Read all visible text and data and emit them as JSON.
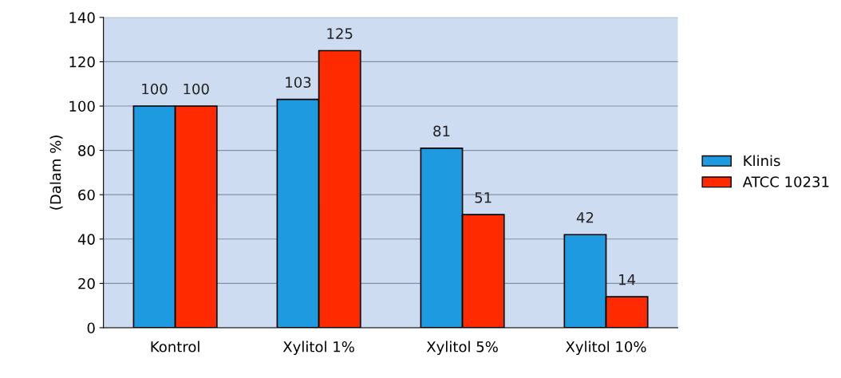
{
  "chart_data": {
    "type": "bar",
    "ylabel": "(Dalam %)",
    "categories": [
      "Kontrol",
      "Xylitol 1%",
      "Xylitol 5%",
      "Xylitol 10%"
    ],
    "series": [
      {
        "name": "Klinis",
        "color": "#1e9be0",
        "values": [
          100,
          103,
          81,
          42
        ]
      },
      {
        "name": "ATCC 10231",
        "color": "#ff2a00",
        "values": [
          100,
          125,
          51,
          14
        ]
      }
    ],
    "ylim": [
      0,
      140
    ],
    "yticks": [
      0,
      20,
      40,
      60,
      80,
      100,
      120,
      140
    ],
    "grid": "y",
    "legend": "right",
    "data_labels": true
  }
}
